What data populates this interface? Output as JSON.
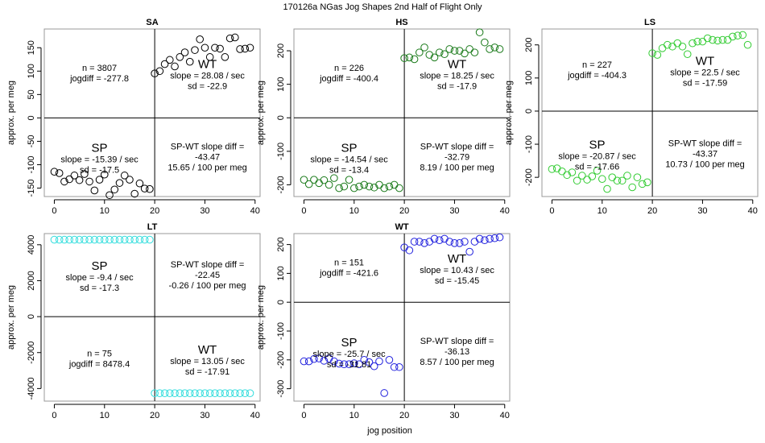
{
  "figure": {
    "title": "170126a   NGas Jog Shapes 2nd Half of Flight Only",
    "xlabel": "jog position"
  },
  "colors": {
    "SA": "#000000",
    "HS": "#1a7a1a",
    "LS": "#33cc33",
    "LT": "#33dddd",
    "WT": "#2222dd",
    "axis": "#000000",
    "frame": "#999999"
  },
  "chart_data": [
    {
      "id": "SA",
      "type": "scatter",
      "title": "SA",
      "ylabel": "approx. per meg",
      "xlim": [
        -2,
        41
      ],
      "ylim": [
        -168,
        190
      ],
      "xticks": [
        0,
        10,
        20,
        30,
        40
      ],
      "xtick_labels": [
        "0",
        "10",
        "20",
        "30",
        "40"
      ],
      "yticks": [
        -150,
        -100,
        -50,
        0,
        50,
        100,
        150
      ],
      "ytick_labels": [
        "-150",
        "-100",
        "-50",
        "0",
        "50",
        "100",
        "150"
      ],
      "series": [
        {
          "name": "SA",
          "x": [
            0,
            1,
            2,
            3,
            4,
            5,
            6,
            7,
            8,
            9,
            10,
            11,
            12,
            13,
            14,
            15,
            16,
            17,
            18,
            19,
            20,
            21,
            22,
            23,
            24,
            25,
            26,
            27,
            28,
            29,
            30,
            31,
            32,
            33,
            34,
            35,
            36,
            37,
            38,
            39
          ],
          "y": [
            -115,
            -118,
            -136,
            -131,
            -123,
            -133,
            -120,
            -136,
            -155,
            -132,
            -121,
            -165,
            -153,
            -139,
            -123,
            -132,
            -162,
            -140,
            -151,
            -152,
            95,
            100,
            115,
            124,
            110,
            130,
            140,
            120,
            145,
            168,
            150,
            130,
            150,
            148,
            130,
            170,
            172,
            147,
            148,
            150
          ]
        }
      ],
      "annotations": {
        "top_left": [
          "n = 3807",
          "jogdiff = -277.8"
        ],
        "top_right": [
          "WT",
          "slope = 28.08 / sec",
          "sd = -22.9"
        ],
        "bottom_left": [
          "SP",
          "slope = -15.39 / sec",
          "sd = -17.5"
        ],
        "bottom_right": [
          "SP-WT slope diff =",
          "-43.47",
          "15.65 / 100 per meg"
        ]
      }
    },
    {
      "id": "HS",
      "type": "scatter",
      "title": "HS",
      "ylabel": "approx. per meg",
      "xlim": [
        -2,
        41
      ],
      "ylim": [
        -235,
        265
      ],
      "xticks": [
        0,
        10,
        20,
        30,
        40
      ],
      "xtick_labels": [
        "0",
        "10",
        "20",
        "30",
        "40"
      ],
      "yticks": [
        -200,
        -100,
        0,
        100,
        200
      ],
      "ytick_labels": [
        "-200",
        "-100",
        "0",
        "100",
        "200"
      ],
      "series": [
        {
          "name": "HS",
          "x": [
            0,
            1,
            2,
            3,
            4,
            5,
            6,
            7,
            8,
            9,
            10,
            11,
            12,
            13,
            14,
            15,
            16,
            17,
            18,
            19,
            20,
            21,
            22,
            23,
            24,
            25,
            26,
            27,
            28,
            29,
            30,
            31,
            32,
            33,
            34,
            35,
            36,
            37,
            38,
            39
          ],
          "y": [
            -185,
            -198,
            -185,
            -195,
            -186,
            -200,
            -180,
            -210,
            -205,
            -185,
            -210,
            -205,
            -200,
            -205,
            -208,
            -200,
            -210,
            -205,
            -200,
            -210,
            178,
            180,
            175,
            195,
            210,
            188,
            180,
            195,
            190,
            205,
            200,
            200,
            192,
            205,
            195,
            255,
            225,
            205,
            210,
            205
          ]
        }
      ],
      "annotations": {
        "top_left": [
          "n = 226",
          "jogdiff = -400.4"
        ],
        "top_right": [
          "WT",
          "slope = 18.25 / sec",
          "sd = -17.9"
        ],
        "bottom_left": [
          "SP",
          "slope = -14.54 / sec",
          "sd = -13.4"
        ],
        "bottom_right": [
          "SP-WT slope diff =",
          "-32.79",
          "8.19 / 100 per meg"
        ]
      }
    },
    {
      "id": "LS",
      "type": "scatter",
      "title": "LS",
      "ylabel": "approx. per meg",
      "xlim": [
        -2,
        41
      ],
      "ylim": [
        -258,
        248
      ],
      "xticks": [
        0,
        10,
        20,
        30,
        40
      ],
      "xtick_labels": [
        "0",
        "10",
        "20",
        "30",
        "40"
      ],
      "yticks": [
        -200,
        -100,
        0,
        100,
        200
      ],
      "ytick_labels": [
        "-200",
        "-100",
        "0",
        "100",
        "200"
      ],
      "series": [
        {
          "name": "LS",
          "x": [
            0,
            1,
            2,
            3,
            4,
            5,
            6,
            7,
            8,
            9,
            10,
            11,
            12,
            13,
            14,
            15,
            16,
            17,
            18,
            19,
            20,
            21,
            22,
            23,
            24,
            25,
            26,
            27,
            28,
            29,
            30,
            31,
            32,
            33,
            34,
            35,
            36,
            37,
            38,
            39
          ],
          "y": [
            -175,
            -173,
            -182,
            -193,
            -185,
            -210,
            -195,
            -207,
            -197,
            -180,
            -205,
            -235,
            -200,
            -210,
            -210,
            -195,
            -230,
            -200,
            -220,
            -215,
            175,
            170,
            190,
            200,
            195,
            205,
            195,
            172,
            205,
            210,
            210,
            220,
            215,
            213,
            215,
            215,
            225,
            228,
            230,
            200
          ]
        }
      ],
      "annotations": {
        "top_left": [
          "n = 227",
          "jogdiff = -404.3"
        ],
        "top_right": [
          "WT",
          "slope = 22.5 / sec",
          "sd = -17.59"
        ],
        "bottom_left": [
          "SP",
          "slope = -20.87 / sec",
          "sd = -17.66"
        ],
        "bottom_right": [
          "SP-WT slope diff =",
          "-43.37",
          "10.73 / 100 per meg"
        ]
      }
    },
    {
      "id": "LT",
      "type": "scatter",
      "title": "LT",
      "ylabel": "approx. per meg",
      "xlim": [
        -2,
        41
      ],
      "ylim": [
        -4700,
        4620
      ],
      "xticks": [
        0,
        10,
        20,
        30,
        40
      ],
      "xtick_labels": [
        "0",
        "10",
        "20",
        "30",
        "40"
      ],
      "yticks": [
        -4000,
        -2000,
        0,
        2000,
        4000
      ],
      "ytick_labels": [
        "-4000",
        "-2000",
        "0",
        "2000",
        "4000"
      ],
      "series": [
        {
          "name": "LT",
          "x": [
            0,
            1,
            2,
            3,
            4,
            5,
            6,
            7,
            8,
            9,
            10,
            11,
            12,
            13,
            14,
            15,
            16,
            17,
            18,
            19,
            20,
            21,
            22,
            23,
            24,
            25,
            26,
            27,
            28,
            29,
            30,
            31,
            32,
            33,
            34,
            35,
            36,
            37,
            38,
            39
          ],
          "y": [
            4280,
            4280,
            4280,
            4280,
            4280,
            4280,
            4280,
            4280,
            4280,
            4280,
            4280,
            4280,
            4280,
            4280,
            4280,
            4280,
            4280,
            4280,
            4280,
            4280,
            -4260,
            -4260,
            -4260,
            -4260,
            -4260,
            -4260,
            -4260,
            -4260,
            -4260,
            -4260,
            -4260,
            -4260,
            -4260,
            -4260,
            -4260,
            -4260,
            -4260,
            -4260,
            -4260,
            -4260
          ]
        }
      ],
      "annotations": {
        "top_left": [
          "SP",
          "slope = -9.4 / sec",
          "sd = -17.3"
        ],
        "top_right": [
          "SP-WT slope diff =",
          "-22.45",
          "-0.26 / 100 per meg"
        ],
        "bottom_left": [
          "n = 75",
          "jogdiff = 8478.4"
        ],
        "bottom_right": [
          "WT",
          "slope = 13.05 / sec",
          "sd = -17.91"
        ]
      }
    },
    {
      "id": "WT",
      "type": "scatter",
      "title": "WT",
      "ylabel": "approx. per meg",
      "xlim": [
        -2,
        41
      ],
      "ylim": [
        -343,
        238
      ],
      "xticks": [
        0,
        10,
        20,
        30,
        40
      ],
      "xtick_labels": [
        "0",
        "10",
        "20",
        "30",
        "40"
      ],
      "yticks": [
        -300,
        -200,
        -100,
        0,
        100,
        200
      ],
      "ytick_labels": [
        "-300",
        "-200",
        "-100",
        "0",
        "100",
        "200"
      ],
      "series": [
        {
          "name": "WT",
          "x": [
            0,
            1,
            2,
            3,
            4,
            5,
            6,
            7,
            8,
            9,
            10,
            11,
            12,
            13,
            14,
            15,
            16,
            17,
            18,
            19,
            20,
            21,
            22,
            23,
            24,
            25,
            26,
            27,
            28,
            29,
            30,
            31,
            32,
            33,
            34,
            35,
            36,
            37,
            38,
            39
          ],
          "y": [
            -205,
            -205,
            -197,
            -195,
            -203,
            -195,
            -205,
            -213,
            -215,
            -215,
            -212,
            -215,
            -200,
            -208,
            -222,
            -205,
            -315,
            -200,
            -225,
            -225,
            190,
            180,
            210,
            210,
            205,
            210,
            220,
            215,
            220,
            210,
            205,
            205,
            210,
            175,
            210,
            220,
            215,
            220,
            222,
            225
          ]
        }
      ],
      "annotations": {
        "top_left": [
          "n = 151",
          "jogdiff = -421.6"
        ],
        "top_right": [
          "WT",
          "slope = 10.43 / sec",
          "sd = -15.45"
        ],
        "bottom_left": [
          "SP",
          "slope = -25.7 / sec",
          "sd = -31.81"
        ],
        "bottom_right": [
          "SP-WT slope diff =",
          "-36.13",
          "8.57 / 100 per meg"
        ]
      }
    }
  ]
}
